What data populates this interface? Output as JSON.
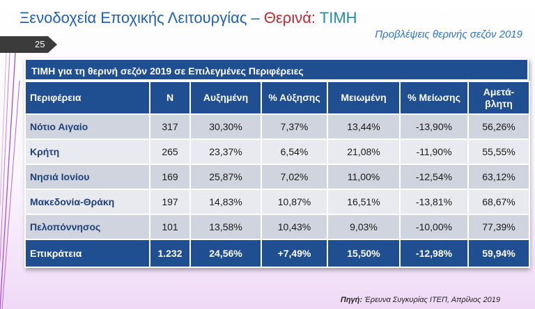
{
  "header": {
    "title_part1": "Ξενοδοχεία Εποχικής Λειτουργίας – ",
    "title_part2": "Θερινά:",
    "title_part3": " ΤΙΜΗ",
    "subtitle": "Προβλέψεις θερινής σεζόν 2019",
    "slide_number": "25"
  },
  "table": {
    "title": "ΤΙΜΗ για τη θερινή σεζόν 2019 σε Επιλεγμένες Περιφέρειες",
    "headers": [
      "Περιφέρεια",
      "Ν",
      "Αυξημένη",
      "% Αύξησης",
      "Μειωμένη",
      "% Μείωσης",
      "Αμετά-βλητη"
    ],
    "rows": [
      [
        "Νότιο Αιγαίο",
        "317",
        "30,30%",
        "7,37%",
        "13,44%",
        "-13,90%",
        "56,26%"
      ],
      [
        "Κρήτη",
        "265",
        "23,37%",
        "6,54%",
        "21,08%",
        "-11,90%",
        "55,55%"
      ],
      [
        "Νησιά Ιονίου",
        "169",
        "25,87%",
        "7,02%",
        "11,00%",
        "-12,54%",
        "63,12%"
      ],
      [
        "Μακεδονία-Θράκη",
        "197",
        "14,83%",
        "10,87%",
        "16,51%",
        "-13,81%",
        "68,67%"
      ],
      [
        "Πελοπόννησος",
        "101",
        "13,58%",
        "10,43%",
        "9,03%",
        "-10,00%",
        "77,39%"
      ]
    ],
    "total": [
      "Επικράτεια",
      "1.232",
      "24,56%",
      "+7,49%",
      "15,50%",
      "-12,98%",
      "59,94%"
    ]
  },
  "source": {
    "label": "Πηγή:",
    "text": " Έρευνα Συγκυρίας ΙΤΕΠ, Απρίλιος 2019"
  }
}
